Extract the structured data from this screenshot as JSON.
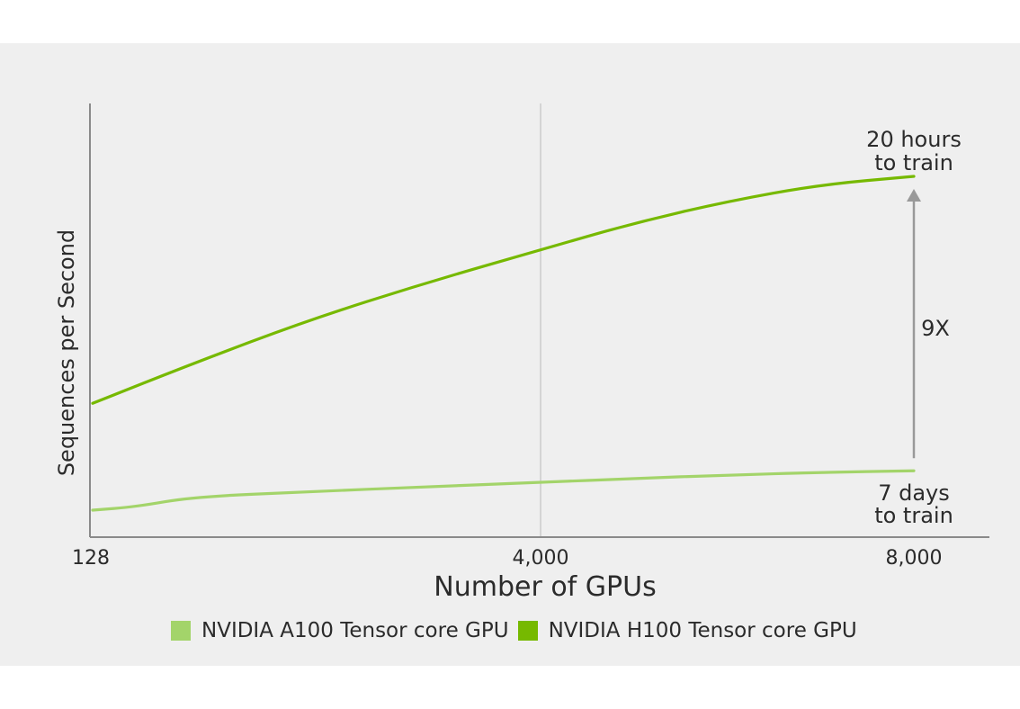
{
  "chart_data": {
    "type": "line",
    "xlabel": "Number of GPUs",
    "ylabel": "Sequences per Second",
    "x_ticks": [
      "128",
      "4,000",
      "8,000"
    ],
    "xlim": [
      128,
      8000
    ],
    "ylim": [
      0,
      1
    ],
    "grid": "vertical line at 4,000",
    "legend_position": "bottom",
    "series": [
      {
        "name": "NVIDIA A100 Tensor core GPU",
        "color": "#a3d46a",
        "points": [
          [
            128,
            0.0
          ],
          [
            500,
            0.01
          ],
          [
            1000,
            0.04
          ],
          [
            2000,
            0.055
          ],
          [
            3000,
            0.07
          ],
          [
            4000,
            0.083
          ],
          [
            5000,
            0.095
          ],
          [
            6000,
            0.105
          ],
          [
            7000,
            0.113
          ],
          [
            8000,
            0.118
          ]
        ]
      },
      {
        "name": "NVIDIA H100 Tensor core GPU",
        "color": "#76b900",
        "points": [
          [
            128,
            0.32
          ],
          [
            1000,
            0.44
          ],
          [
            2000,
            0.57
          ],
          [
            3000,
            0.68
          ],
          [
            4000,
            0.78
          ],
          [
            5000,
            0.86
          ],
          [
            6000,
            0.925
          ],
          [
            7000,
            0.975
          ],
          [
            8000,
            1.0
          ]
        ]
      }
    ],
    "annotations": {
      "top": [
        "20 hours",
        "to train"
      ],
      "bottom": [
        "7 days",
        "to train"
      ],
      "multiplier": "9X"
    }
  }
}
